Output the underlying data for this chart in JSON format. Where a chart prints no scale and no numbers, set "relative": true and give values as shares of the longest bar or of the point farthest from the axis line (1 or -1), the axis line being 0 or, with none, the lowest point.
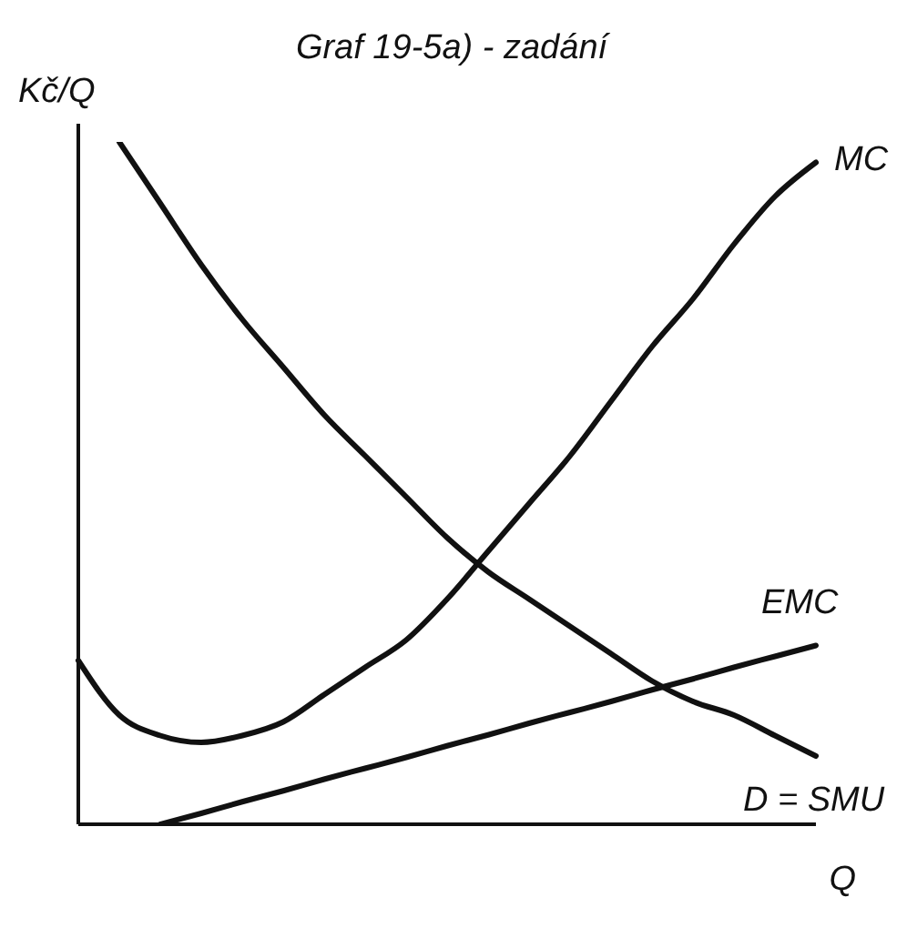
{
  "chart_data": {
    "type": "line",
    "title": "Graf 19-5a) - zadání",
    "xlabel": "Q",
    "ylabel": "Kč/Q",
    "relative": true,
    "marker": "none",
    "categories": [
      null,
      null,
      null,
      null,
      null,
      null,
      null,
      null,
      null,
      null,
      null,
      null,
      null,
      null,
      null,
      null,
      null,
      null,
      null
    ],
    "series": [
      {
        "name": "MC",
        "color": "#111111",
        "values": [
          0.24,
          0.16,
          0.13,
          0.12,
          0.13,
          0.15,
          0.19,
          0.23,
          0.27,
          0.33,
          0.4,
          0.47,
          0.54,
          0.62,
          0.7,
          0.77,
          0.85,
          0.92,
          0.97
        ]
      },
      {
        "name": "EMC",
        "color": "#111111",
        "values": [
          null,
          null,
          0,
          0.016,
          0.033,
          0.049,
          0.066,
          0.082,
          0.098,
          0.115,
          0.131,
          0.148,
          0.164,
          0.18,
          0.197,
          0.213,
          0.23,
          0.246,
          0.262
        ]
      },
      {
        "name": "D = SMU",
        "color": "#111111",
        "values": [
          null,
          1,
          0.91,
          0.82,
          0.74,
          0.67,
          0.6,
          0.54,
          0.48,
          0.42,
          0.37,
          0.33,
          0.29,
          0.25,
          0.21,
          0.18,
          0.16,
          0.13,
          0.1
        ]
      }
    ]
  }
}
